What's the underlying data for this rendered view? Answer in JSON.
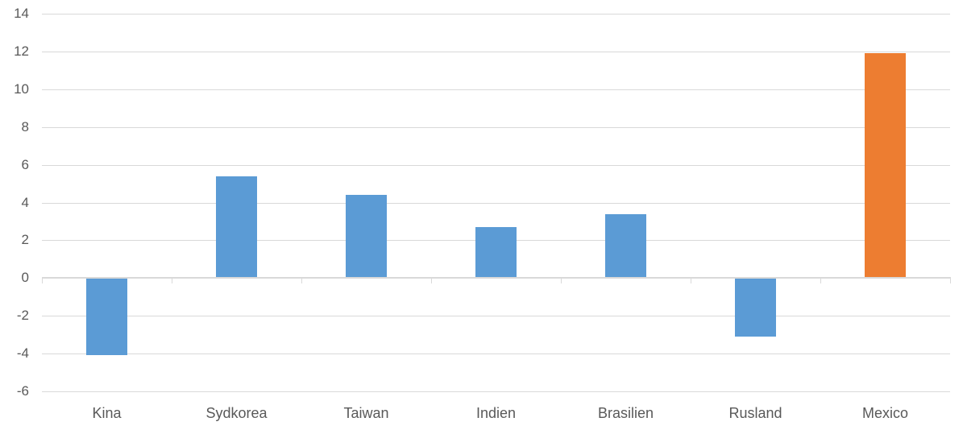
{
  "chart_data": {
    "type": "bar",
    "title": "",
    "categories": [
      "Kina",
      "Sydkorea",
      "Taiwan",
      "Indien",
      "Brasilien",
      "Rusland",
      "Mexico"
    ],
    "values": [
      -4.1,
      5.4,
      4.4,
      2.7,
      3.4,
      -3.1,
      11.9
    ],
    "bar_colors": [
      "#5B9BD5",
      "#5B9BD5",
      "#5B9BD5",
      "#5B9BD5",
      "#5B9BD5",
      "#5B9BD5",
      "#ED7D31"
    ],
    "highlighted_category": "Mexico",
    "xlabel": "",
    "ylabel": "",
    "ylim": [
      -6,
      14
    ],
    "yticks": [
      14,
      12,
      10,
      8,
      6,
      4,
      2,
      0,
      -2,
      -4,
      -6
    ],
    "ytick_labels": [
      "14",
      "12",
      "10",
      "8",
      "6",
      "4",
      "2",
      "0",
      "-2",
      "-4",
      "-6"
    ],
    "grid": true,
    "legend": false,
    "colors": {
      "bar_default": "#5B9BD5",
      "bar_highlight": "#ED7D31",
      "gridline": "#D9D9D9",
      "axis_line": "#D9D9D9",
      "tick_label_text": "#595959",
      "background": "#FFFFFF"
    }
  }
}
